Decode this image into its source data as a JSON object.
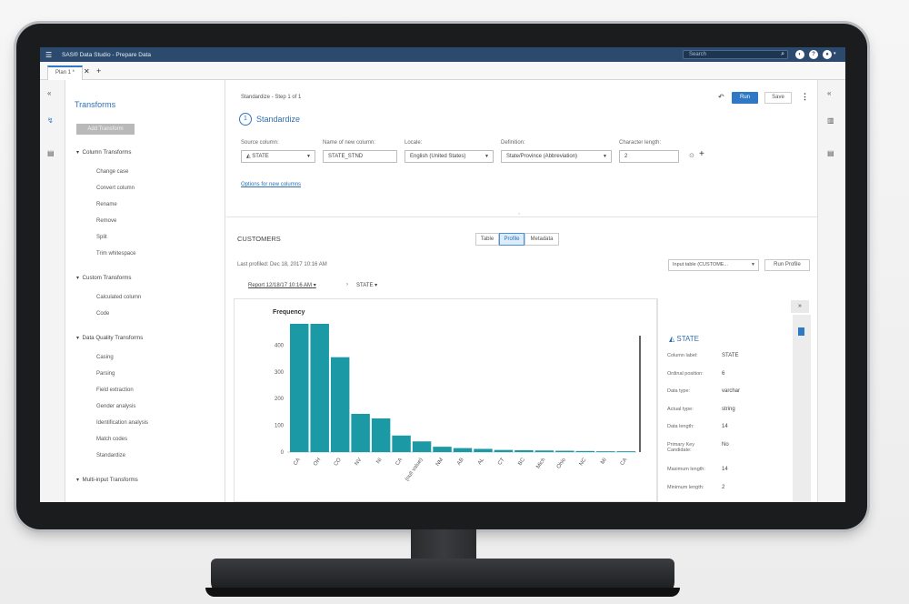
{
  "app": {
    "title": "SAS® Data Studio - Prepare Data"
  },
  "topbar": {
    "search_placeholder": "Search"
  },
  "tabs": [
    {
      "label": "Plan 1 *"
    }
  ],
  "transforms": {
    "title": "Transforms",
    "add_button": "Add Transform",
    "groups": [
      {
        "label": "Column Transforms",
        "items": [
          "Change case",
          "Convert column",
          "Rename",
          "Remove",
          "Split",
          "Trim whitespace"
        ]
      },
      {
        "label": "Custom Transforms",
        "items": [
          "Calculated column",
          "Code"
        ]
      },
      {
        "label": "Data Quality Transforms",
        "items": [
          "Casing",
          "Parsing",
          "Field extraction",
          "Gender analysis",
          "Identification analysis",
          "Match codes",
          "Standardize"
        ]
      },
      {
        "label": "Multi-input Transforms",
        "items": []
      }
    ]
  },
  "main": {
    "step_label": "Standardize - Step 1 of 1",
    "run_label": "Run",
    "save_label": "Save",
    "step_number": "1",
    "step_title": "Standardize",
    "fields": {
      "source_column": {
        "label": "Source column:",
        "value": "STATE"
      },
      "new_column": {
        "label": "Name of new column:",
        "value": "STATE_STND"
      },
      "locale": {
        "label": "Locale:",
        "value": "English (United States)"
      },
      "definition": {
        "label": "Definition:",
        "value": "State/Province (Abbreviation)"
      },
      "char_length": {
        "label": "Character length:",
        "value": "2"
      }
    },
    "options_link": "Options for new columns",
    "table_name": "CUSTOMERS",
    "view_tabs": [
      "Table",
      "Profile",
      "Metadata"
    ],
    "active_view": "Profile",
    "last_profiled": "Last profiled:  Dec 18, 2017 10:16 AM",
    "input_table": "Input table (CUSTOME...",
    "run_profile": "Run Profile",
    "report_link": "Report 12/18/17 10:16 AM",
    "crumb_sep": "›",
    "crumb_state": "STATE"
  },
  "chart_data": {
    "type": "bar",
    "title": "Frequency",
    "categories": [
      "CA",
      "OH",
      "CO",
      "NV",
      "NI",
      "CA",
      "(null value)",
      "NM",
      "AB",
      "AL",
      "CT",
      "BC",
      "Mich",
      "Ohio",
      "NC",
      "MI",
      "CA"
    ],
    "values": [
      480,
      480,
      355,
      143,
      126,
      62,
      40,
      20,
      15,
      12,
      8,
      7,
      6,
      5,
      4,
      3,
      3
    ],
    "yticks": [
      0,
      100,
      200,
      300,
      400
    ],
    "ylim": [
      0,
      490
    ],
    "color": "#1b9aa6"
  },
  "detail": {
    "title": "STATE",
    "rows": [
      {
        "key": "Column label:",
        "value": "STATE"
      },
      {
        "key": "Ordinal position:",
        "value": "6"
      },
      {
        "key": "Data type:",
        "value": "varchar"
      },
      {
        "key": "Actual type:",
        "value": "string"
      },
      {
        "key": "Data length:",
        "value": "14"
      },
      {
        "key": "Primary Key Candidate:",
        "value": "No"
      },
      {
        "key": "Maximum length:",
        "value": "14"
      },
      {
        "key": "Minimum length:",
        "value": "2"
      }
    ]
  }
}
